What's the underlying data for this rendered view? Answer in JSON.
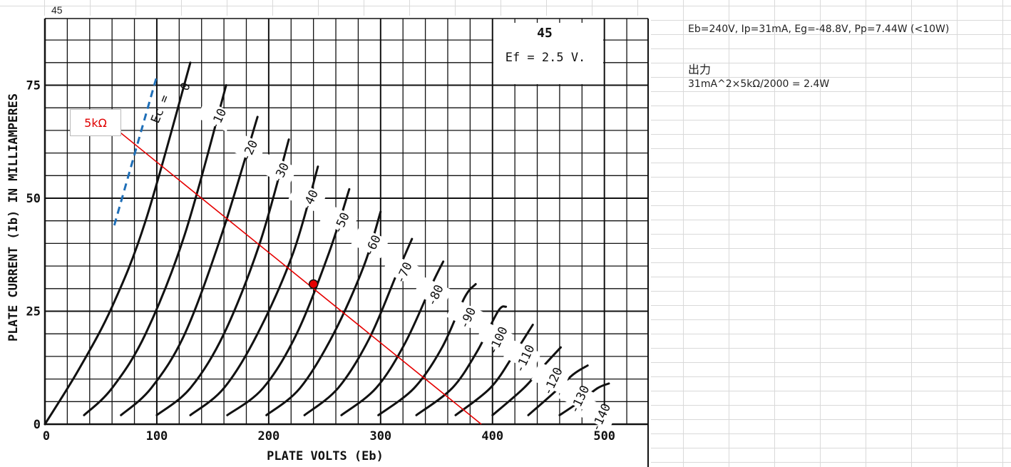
{
  "sheet": {
    "cell_a1": "45",
    "note_line1": "Eb=240V, Ip=31mA, Eg=-48.8V, Pp=7.44W (<10W)",
    "note_heading": "出力",
    "note_line2": "31mA^2×5kΩ/2000 = 2.4W"
  },
  "chart_data": {
    "type": "line",
    "title": "45",
    "subtitle": "Ef = 2.5 V.",
    "xlabel": "PLATE VOLTS (Eb)",
    "ylabel": "PLATE CURRENT (Ib) IN MILLIAMPERES",
    "xlim": [
      0,
      530
    ],
    "ylim": [
      0,
      91
    ],
    "x_ticks": [
      {
        "value": 0,
        "label": "0"
      },
      {
        "value": 100,
        "label": "100"
      },
      {
        "value": 200,
        "label": "200"
      },
      {
        "value": 300,
        "label": "300"
      },
      {
        "value": 400,
        "label": "400"
      },
      {
        "value": 500,
        "label": "500"
      }
    ],
    "y_ticks": [
      {
        "value": 0,
        "label": "0"
      },
      {
        "value": 25,
        "label": "25"
      },
      {
        "value": 50,
        "label": "50"
      },
      {
        "value": 75,
        "label": "75"
      }
    ],
    "grid": true,
    "grid_step_x": 20,
    "grid_step_y": 5,
    "curve_family_label": "Ec =",
    "series": [
      {
        "name": "0",
        "points": [
          [
            0,
            0
          ],
          [
            30,
            12
          ],
          [
            60,
            26
          ],
          [
            90,
            45
          ],
          [
            130,
            80
          ]
        ]
      },
      {
        "name": "-10",
        "points": [
          [
            35,
            2
          ],
          [
            60,
            8
          ],
          [
            90,
            20
          ],
          [
            125,
            42
          ],
          [
            162,
            75
          ]
        ]
      },
      {
        "name": "-20",
        "points": [
          [
            68,
            2
          ],
          [
            95,
            8
          ],
          [
            125,
            20
          ],
          [
            158,
            42
          ],
          [
            190,
            68
          ]
        ]
      },
      {
        "name": "-30",
        "points": [
          [
            100,
            2
          ],
          [
            130,
            8
          ],
          [
            160,
            20
          ],
          [
            192,
            40
          ],
          [
            218,
            63
          ]
        ]
      },
      {
        "name": "-40",
        "points": [
          [
            130,
            2
          ],
          [
            160,
            8
          ],
          [
            190,
            20
          ],
          [
            222,
            38
          ],
          [
            244,
            57
          ]
        ]
      },
      {
        "name": "-50",
        "points": [
          [
            163,
            2
          ],
          [
            195,
            8
          ],
          [
            225,
            20
          ],
          [
            254,
            38
          ],
          [
            272,
            52
          ]
        ]
      },
      {
        "name": "-60",
        "points": [
          [
            198,
            2
          ],
          [
            228,
            8
          ],
          [
            258,
            20
          ],
          [
            285,
            35
          ],
          [
            300,
            47
          ]
        ]
      },
      {
        "name": "-70",
        "points": [
          [
            232,
            2
          ],
          [
            262,
            8
          ],
          [
            290,
            19
          ],
          [
            314,
            33
          ],
          [
            328,
            41
          ]
        ]
      },
      {
        "name": "-80",
        "points": [
          [
            265,
            2
          ],
          [
            296,
            8
          ],
          [
            322,
            18
          ],
          [
            346,
            31
          ],
          [
            356,
            36
          ]
        ]
      },
      {
        "name": "-90",
        "points": [
          [
            298,
            2
          ],
          [
            330,
            8
          ],
          [
            355,
            17
          ],
          [
            375,
            28
          ],
          [
            385,
            31
          ]
        ]
      },
      {
        "name": "-100",
        "points": [
          [
            332,
            2
          ],
          [
            364,
            8
          ],
          [
            386,
            16
          ],
          [
            405,
            25
          ],
          [
            412,
            26
          ]
        ]
      },
      {
        "name": "-110",
        "points": [
          [
            367,
            2
          ],
          [
            398,
            8
          ],
          [
            418,
            15
          ],
          [
            436,
            22
          ]
        ]
      },
      {
        "name": "-120",
        "points": [
          [
            400,
            2
          ],
          [
            428,
            8
          ],
          [
            446,
            13
          ],
          [
            461,
            17
          ]
        ]
      },
      {
        "name": "-130",
        "points": [
          [
            432,
            2
          ],
          [
            455,
            7
          ],
          [
            472,
            11
          ],
          [
            485,
            13
          ]
        ]
      },
      {
        "name": "-140",
        "points": [
          [
            460,
            2
          ],
          [
            478,
            5
          ],
          [
            494,
            8
          ],
          [
            504,
            9
          ]
        ]
      }
    ],
    "load_line": {
      "name": "5kΩ",
      "color": "#e60000",
      "points": [
        [
          60,
          66
        ],
        [
          390,
          0
        ]
      ]
    },
    "operating_point": {
      "x": 240,
      "y": 31,
      "color": "#e60000"
    },
    "dashed_line": {
      "color": "#1f6fb8",
      "points": [
        [
          62,
          44
        ],
        [
          100,
          77
        ]
      ]
    }
  }
}
